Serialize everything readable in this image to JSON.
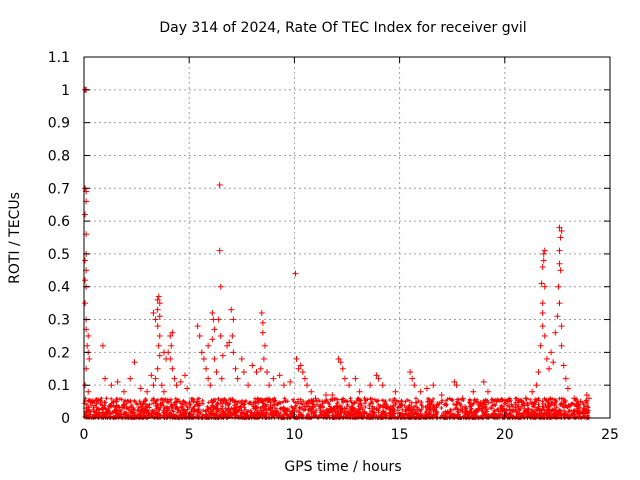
{
  "chart_data": {
    "type": "scatter",
    "title": "Day 314 of 2024, Rate Of TEC Index for receiver gvil",
    "xlabel": "GPS time / hours",
    "ylabel": "ROTI / TECUs",
    "xlim": [
      0,
      25
    ],
    "ylim": [
      0,
      1.1
    ],
    "x_ticks": [
      0,
      5,
      10,
      15,
      20,
      25
    ],
    "x_tick_labels": [
      "0",
      "5",
      "10",
      "15",
      "20",
      "25"
    ],
    "y_ticks": [
      0,
      0.1,
      0.2,
      0.3,
      0.4,
      0.5,
      0.6,
      0.7,
      0.8,
      0.9,
      1,
      1.1
    ],
    "y_tick_labels": [
      "0",
      "0.1",
      "0.2",
      "0.3",
      "0.4",
      "0.5",
      "0.6",
      "0.7",
      "0.8",
      "0.9",
      "1",
      "1.1"
    ],
    "grid": true,
    "marker": "+",
    "series_color": "#ff0000",
    "series": [
      {
        "name": "ROTI",
        "points": [
          [
            0.05,
            1.0
          ],
          [
            0.1,
            1.0
          ],
          [
            0.05,
            0.7
          ],
          [
            0.1,
            0.69
          ],
          [
            0.1,
            0.66
          ],
          [
            0.05,
            0.62
          ],
          [
            0.1,
            0.56
          ],
          [
            0.1,
            0.5
          ],
          [
            0.05,
            0.48
          ],
          [
            0.1,
            0.45
          ],
          [
            0.05,
            0.42
          ],
          [
            0.1,
            0.4
          ],
          [
            0.05,
            0.35
          ],
          [
            0.1,
            0.3
          ],
          [
            0.1,
            0.27
          ],
          [
            0.2,
            0.25
          ],
          [
            0.15,
            0.22
          ],
          [
            0.2,
            0.2
          ],
          [
            0.25,
            0.18
          ],
          [
            0.1,
            0.15
          ],
          [
            0.05,
            0.1
          ],
          [
            0.2,
            0.08
          ],
          [
            0.3,
            0.05
          ],
          [
            0.1,
            0.03
          ],
          [
            0.9,
            0.22
          ],
          [
            1.0,
            0.12
          ],
          [
            1.3,
            0.1
          ],
          [
            1.6,
            0.11
          ],
          [
            1.9,
            0.08
          ],
          [
            2.2,
            0.12
          ],
          [
            2.4,
            0.17
          ],
          [
            2.7,
            0.09
          ],
          [
            3.0,
            0.08
          ],
          [
            3.3,
            0.32
          ],
          [
            3.4,
            0.3
          ],
          [
            3.5,
            0.36
          ],
          [
            3.55,
            0.37
          ],
          [
            3.6,
            0.35
          ],
          [
            3.5,
            0.33
          ],
          [
            3.6,
            0.31
          ],
          [
            3.5,
            0.28
          ],
          [
            3.6,
            0.25
          ],
          [
            3.55,
            0.22
          ],
          [
            3.6,
            0.19
          ],
          [
            3.5,
            0.15
          ],
          [
            3.4,
            0.12
          ],
          [
            3.3,
            0.1
          ],
          [
            3.2,
            0.13
          ],
          [
            3.8,
            0.2
          ],
          [
            3.9,
            0.18
          ],
          [
            3.7,
            0.1
          ],
          [
            3.8,
            0.08
          ],
          [
            4.0,
            0.2
          ],
          [
            4.1,
            0.25
          ],
          [
            4.2,
            0.26
          ],
          [
            4.15,
            0.22
          ],
          [
            4.1,
            0.18
          ],
          [
            4.2,
            0.15
          ],
          [
            4.3,
            0.12
          ],
          [
            4.4,
            0.1
          ],
          [
            4.6,
            0.11
          ],
          [
            4.8,
            0.13
          ],
          [
            4.9,
            0.09
          ],
          [
            5.4,
            0.28
          ],
          [
            5.5,
            0.25
          ],
          [
            5.6,
            0.2
          ],
          [
            5.7,
            0.18
          ],
          [
            5.8,
            0.15
          ],
          [
            5.9,
            0.12
          ],
          [
            6.0,
            0.1
          ],
          [
            5.9,
            0.22
          ],
          [
            6.1,
            0.32
          ],
          [
            6.15,
            0.3
          ],
          [
            6.2,
            0.27
          ],
          [
            6.1,
            0.24
          ],
          [
            6.2,
            0.18
          ],
          [
            6.3,
            0.14
          ],
          [
            6.45,
            0.71
          ],
          [
            6.45,
            0.51
          ],
          [
            6.5,
            0.4
          ],
          [
            6.4,
            0.3
          ],
          [
            6.5,
            0.25
          ],
          [
            6.6,
            0.19
          ],
          [
            6.55,
            0.12
          ],
          [
            6.8,
            0.22
          ],
          [
            6.9,
            0.23
          ],
          [
            7.0,
            0.33
          ],
          [
            7.1,
            0.3
          ],
          [
            7.05,
            0.25
          ],
          [
            7.1,
            0.2
          ],
          [
            7.2,
            0.15
          ],
          [
            7.3,
            0.12
          ],
          [
            7.5,
            0.18
          ],
          [
            7.6,
            0.14
          ],
          [
            7.8,
            0.1
          ],
          [
            8.0,
            0.16
          ],
          [
            8.2,
            0.14
          ],
          [
            8.4,
            0.15
          ],
          [
            8.45,
            0.32
          ],
          [
            8.5,
            0.29
          ],
          [
            8.5,
            0.26
          ],
          [
            8.6,
            0.22
          ],
          [
            8.55,
            0.18
          ],
          [
            8.7,
            0.14
          ],
          [
            8.8,
            0.1
          ],
          [
            9.0,
            0.12
          ],
          [
            9.3,
            0.13
          ],
          [
            9.5,
            0.1
          ],
          [
            9.8,
            0.11
          ],
          [
            10.05,
            0.44
          ],
          [
            10.1,
            0.18
          ],
          [
            10.2,
            0.15
          ],
          [
            10.3,
            0.16
          ],
          [
            10.4,
            0.14
          ],
          [
            10.5,
            0.12
          ],
          [
            10.6,
            0.1
          ],
          [
            10.8,
            0.08
          ],
          [
            11.0,
            0.06
          ],
          [
            11.5,
            0.07
          ],
          [
            11.8,
            0.07
          ],
          [
            12.1,
            0.18
          ],
          [
            12.2,
            0.17
          ],
          [
            12.3,
            0.15
          ],
          [
            12.4,
            0.12
          ],
          [
            12.6,
            0.1
          ],
          [
            12.9,
            0.12
          ],
          [
            13.1,
            0.08
          ],
          [
            13.6,
            0.1
          ],
          [
            13.9,
            0.13
          ],
          [
            14.0,
            0.12
          ],
          [
            14.2,
            0.1
          ],
          [
            14.8,
            0.08
          ],
          [
            15.1,
            0.05
          ],
          [
            15.5,
            0.14
          ],
          [
            15.6,
            0.12
          ],
          [
            15.7,
            0.1
          ],
          [
            16.0,
            0.08
          ],
          [
            16.3,
            0.09
          ],
          [
            16.6,
            0.1
          ],
          [
            17.0,
            0.07
          ],
          [
            17.6,
            0.11
          ],
          [
            17.7,
            0.1
          ],
          [
            18.0,
            0.06
          ],
          [
            18.5,
            0.08
          ],
          [
            19.0,
            0.11
          ],
          [
            19.2,
            0.08
          ],
          [
            19.6,
            0.05
          ],
          [
            20.2,
            0.05
          ],
          [
            20.5,
            0.04
          ],
          [
            20.8,
            0.05
          ],
          [
            21.0,
            0.06
          ],
          [
            21.3,
            0.08
          ],
          [
            21.5,
            0.1
          ],
          [
            21.6,
            0.14
          ],
          [
            21.7,
            0.22
          ],
          [
            21.8,
            0.28
          ],
          [
            21.8,
            0.35
          ],
          [
            21.75,
            0.41
          ],
          [
            21.8,
            0.46
          ],
          [
            21.85,
            0.5
          ],
          [
            21.9,
            0.51
          ],
          [
            21.85,
            0.48
          ],
          [
            21.9,
            0.4
          ],
          [
            21.8,
            0.32
          ],
          [
            21.9,
            0.25
          ],
          [
            22.0,
            0.18
          ],
          [
            22.1,
            0.15
          ],
          [
            22.2,
            0.2
          ],
          [
            22.3,
            0.17
          ],
          [
            22.4,
            0.26
          ],
          [
            22.5,
            0.31
          ],
          [
            22.55,
            0.4
          ],
          [
            22.6,
            0.47
          ],
          [
            22.6,
            0.51
          ],
          [
            22.65,
            0.55
          ],
          [
            22.6,
            0.58
          ],
          [
            22.7,
            0.57
          ],
          [
            22.65,
            0.45
          ],
          [
            22.6,
            0.35
          ],
          [
            22.7,
            0.28
          ],
          [
            22.7,
            0.22
          ],
          [
            22.8,
            0.16
          ],
          [
            22.9,
            0.12
          ],
          [
            23.0,
            0.09
          ],
          [
            23.3,
            0.06
          ],
          [
            23.6,
            0.05
          ],
          [
            23.9,
            0.07
          ],
          [
            24.0,
            0.06
          ]
        ]
      }
    ],
    "noise_band": {
      "x_range": [
        0,
        24
      ],
      "y_range": [
        0,
        0.06
      ],
      "description": "dense cluster of low ROTI values"
    }
  }
}
